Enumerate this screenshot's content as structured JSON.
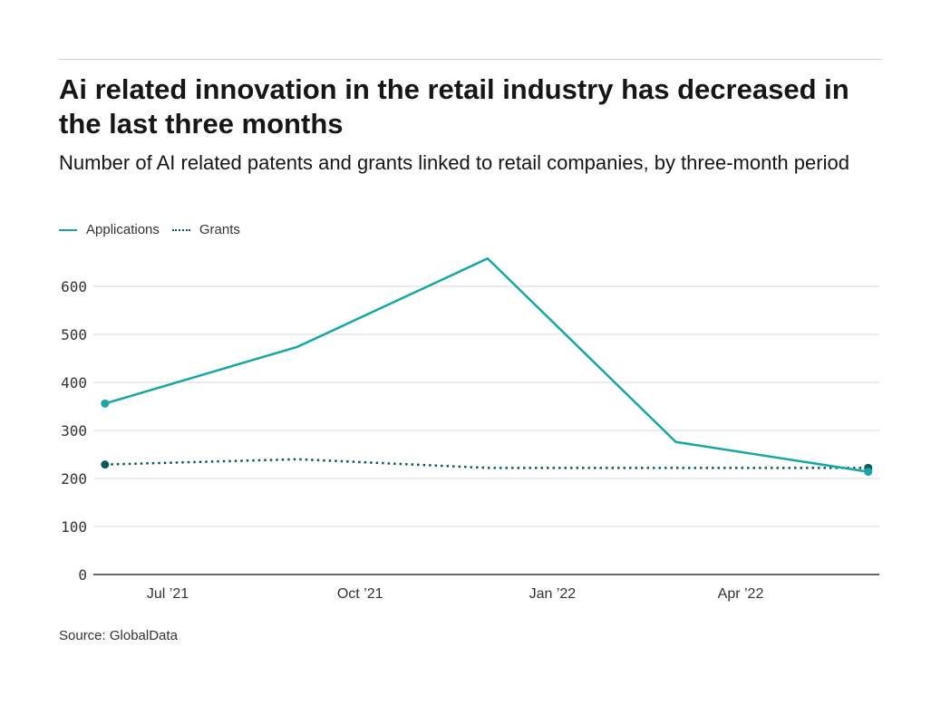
{
  "title": "Ai related innovation in the retail industry has decreased in the last three months",
  "subtitle": "Number of AI related patents and grants linked to retail companies, by three-month period",
  "source": "Source: GlobalData",
  "chart_data": {
    "type": "line",
    "title": "Ai related innovation in the retail industry has decreased in the last three months",
    "subtitle": "Number of AI related patents and grants linked to retail companies, by three-month period",
    "x": [
      "2021-06-01",
      "2021-09-01",
      "2021-12-01",
      "2022-03-01",
      "2022-06-01"
    ],
    "series": [
      {
        "name": "Applications",
        "values": [
          356,
          474,
          658,
          276,
          214
        ],
        "color": "#16a7a4",
        "style": "solid"
      },
      {
        "name": "Grants",
        "values": [
          229,
          240,
          222,
          222,
          222
        ],
        "color": "#0b5a5a",
        "style": "dotted"
      }
    ],
    "xticks": [
      {
        "date": "2021-07-01",
        "label": "Jul ’21"
      },
      {
        "date": "2021-10-01",
        "label": "Oct ’21"
      },
      {
        "date": "2022-01-01",
        "label": "Jan ’22"
      },
      {
        "date": "2022-04-01",
        "label": "Apr ’22"
      }
    ],
    "yticks": [
      0,
      100,
      200,
      300,
      400,
      500,
      600
    ],
    "ylim": [
      0,
      600
    ],
    "xlabel": "",
    "ylabel": "",
    "grid": true,
    "legend": "top-left"
  }
}
